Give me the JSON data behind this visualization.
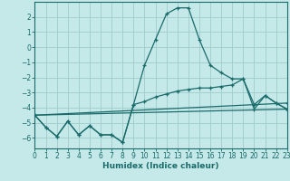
{
  "xlabel": "Humidex (Indice chaleur)",
  "background_color": "#c5e8e8",
  "grid_color": "#a0cccc",
  "line_color": "#1a6b6b",
  "xlim": [
    0,
    23
  ],
  "ylim": [
    -6.7,
    3.0
  ],
  "yticks": [
    2,
    1,
    0,
    -1,
    -2,
    -3,
    -4,
    -5,
    -6
  ],
  "xticks": [
    0,
    1,
    2,
    3,
    4,
    5,
    6,
    7,
    8,
    9,
    10,
    11,
    12,
    13,
    14,
    15,
    16,
    17,
    18,
    19,
    20,
    21,
    22,
    23
  ],
  "line1_x": [
    0,
    1,
    2,
    3,
    4,
    5,
    6,
    7,
    8,
    9,
    10,
    11,
    12,
    13,
    14,
    15,
    16,
    17,
    18,
    19,
    20,
    21,
    22,
    23
  ],
  "line1_y": [
    -4.5,
    -5.3,
    -5.9,
    -4.9,
    -5.8,
    -5.2,
    -5.8,
    -5.8,
    -6.3,
    -3.8,
    -1.2,
    0.5,
    2.2,
    2.6,
    2.6,
    0.5,
    -1.2,
    -1.7,
    -2.1,
    -2.1,
    -4.1,
    -3.2,
    -3.7,
    -4.1
  ],
  "line2_x": [
    0,
    1,
    2,
    3,
    4,
    5,
    6,
    7,
    8,
    9,
    10,
    11,
    12,
    13,
    14,
    15,
    16,
    17,
    18,
    19,
    20,
    21,
    22,
    23
  ],
  "line2_y": [
    -4.5,
    -5.3,
    -5.9,
    -4.9,
    -5.8,
    -5.2,
    -5.8,
    -5.8,
    -6.3,
    -3.8,
    -3.6,
    -3.3,
    -3.1,
    -2.9,
    -2.8,
    -2.7,
    -2.7,
    -2.6,
    -2.5,
    -2.1,
    -3.8,
    -3.2,
    -3.7,
    -4.1
  ],
  "line3_x": [
    0,
    23
  ],
  "line3_y": [
    -4.5,
    -4.1
  ],
  "line4_x": [
    0,
    23
  ],
  "line4_y": [
    -4.5,
    -3.7
  ]
}
